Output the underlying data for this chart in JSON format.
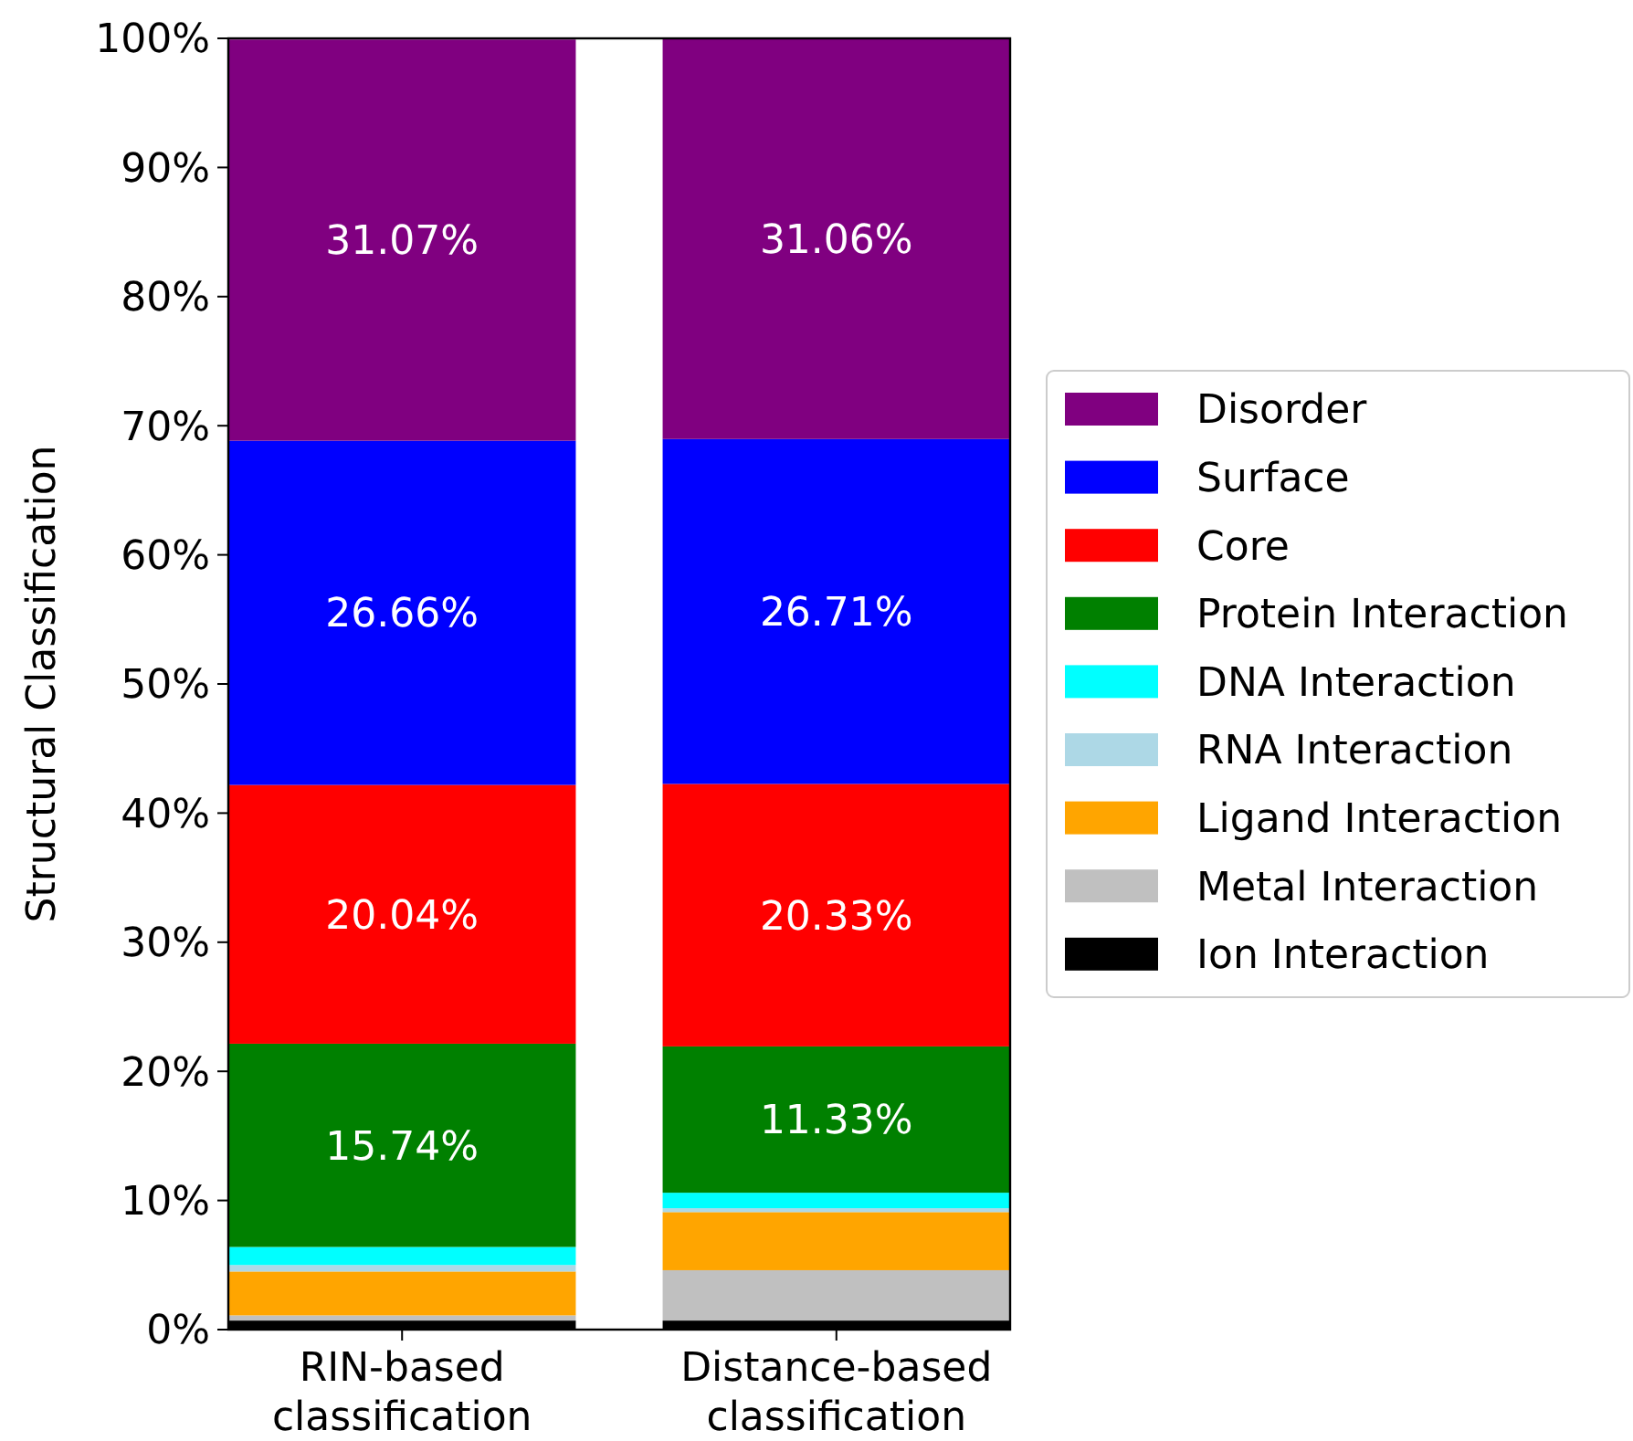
{
  "chart_data": {
    "type": "bar",
    "stacked": true,
    "ylabel": "Structural Classification",
    "categories": [
      "RIN-based\nclassification",
      "Distance-based\nclassification"
    ],
    "ylim": [
      0,
      100
    ],
    "yticks": [
      {
        "value": 0,
        "label": "0%"
      },
      {
        "value": 10,
        "label": "10%"
      },
      {
        "value": 20,
        "label": "20%"
      },
      {
        "value": 30,
        "label": "30%"
      },
      {
        "value": 40,
        "label": "40%"
      },
      {
        "value": 50,
        "label": "50%"
      },
      {
        "value": 60,
        "label": "60%"
      },
      {
        "value": 70,
        "label": "70%"
      },
      {
        "value": 80,
        "label": "80%"
      },
      {
        "value": 90,
        "label": "90%"
      },
      {
        "value": 100,
        "label": "100%"
      }
    ],
    "legend": "right",
    "grid": false,
    "series": [
      {
        "name": "Ion Interaction",
        "color": "#000000",
        "values": [
          0.7,
          0.7
        ]
      },
      {
        "name": "Metal Interaction",
        "color": "#c0c0c0",
        "values": [
          0.4,
          3.9
        ]
      },
      {
        "name": "Ligand Interaction",
        "color": "#ffa500",
        "values": [
          3.4,
          4.5
        ]
      },
      {
        "name": "RNA Interaction",
        "color": "#add8e6",
        "values": [
          0.5,
          0.3
        ]
      },
      {
        "name": "DNA Interaction",
        "color": "#00ffff",
        "values": [
          1.4,
          1.2
        ]
      },
      {
        "name": "Protein Interaction",
        "color": "#008000",
        "values": [
          15.74,
          11.33
        ],
        "value_labels": [
          "15.74%",
          "11.33%"
        ]
      },
      {
        "name": "Core",
        "color": "#ff0000",
        "values": [
          20.04,
          20.33
        ],
        "value_labels": [
          "20.04%",
          "20.33%"
        ]
      },
      {
        "name": "Surface",
        "color": "#0000ff",
        "values": [
          26.66,
          26.71
        ],
        "value_labels": [
          "26.66%",
          "26.71%"
        ]
      },
      {
        "name": "Disorder",
        "color": "#800080",
        "values": [
          31.07,
          31.06
        ],
        "value_labels": [
          "31.07%",
          "31.06%"
        ]
      }
    ]
  }
}
